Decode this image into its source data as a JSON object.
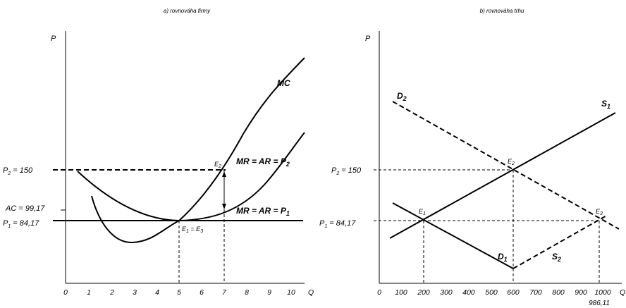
{
  "panel_a": {
    "title": "a) rovnováha firmy",
    "y_axis_label": "P",
    "x_axis_label": "Q",
    "x_ticks": [
      "0",
      "1",
      "2",
      "3",
      "4",
      "5",
      "6",
      "7",
      "8",
      "9",
      "10"
    ],
    "y_labels": {
      "p2_main": "P",
      "p2_sub": "2",
      "p2_value": " = 150",
      "ac": "AC = 99,17",
      "p1_main": "P",
      "p1_sub": "1",
      "p1_value": " = 84,17"
    },
    "curve_labels": {
      "mc": "MC",
      "mr2_main": "MR = AR = P",
      "mr2_sub": "2",
      "mr1_main": "MR = AR = P",
      "mr1_sub": "1"
    },
    "points": {
      "e2_main": "E",
      "e2_sub": "2",
      "e1e3_a": "E",
      "e1e3_a_sub": "1",
      "e1e3_mid": " = E",
      "e1e3_b_sub": "3"
    }
  },
  "panel_b": {
    "title": "b) rovnováha trhu",
    "y_axis_label": "P",
    "x_axis_label": "Q",
    "x_ticks": [
      "0",
      "100",
      "200",
      "300",
      "400",
      "500",
      "600",
      "700",
      "800",
      "900",
      "1000"
    ],
    "extra_tick": "986,11",
    "y_labels": {
      "p2_main": "P",
      "p2_sub": "2",
      "p2_value": " = 150",
      "p1_main": "P",
      "p1_sub": "1",
      "p1_value": " = 84,17"
    },
    "curve_labels": {
      "d2_main": "D",
      "d2_sub": "2",
      "s1_main": "S",
      "s1_sub": "1",
      "d1_main": "D",
      "d1_sub": "1",
      "s2_main": "S",
      "s2_sub": "2"
    },
    "points": {
      "e1_main": "E",
      "e1_sub": "1",
      "e2_main": "E",
      "e2_sub": "2",
      "e3_main": "E",
      "e3_sub": "3"
    }
  }
}
